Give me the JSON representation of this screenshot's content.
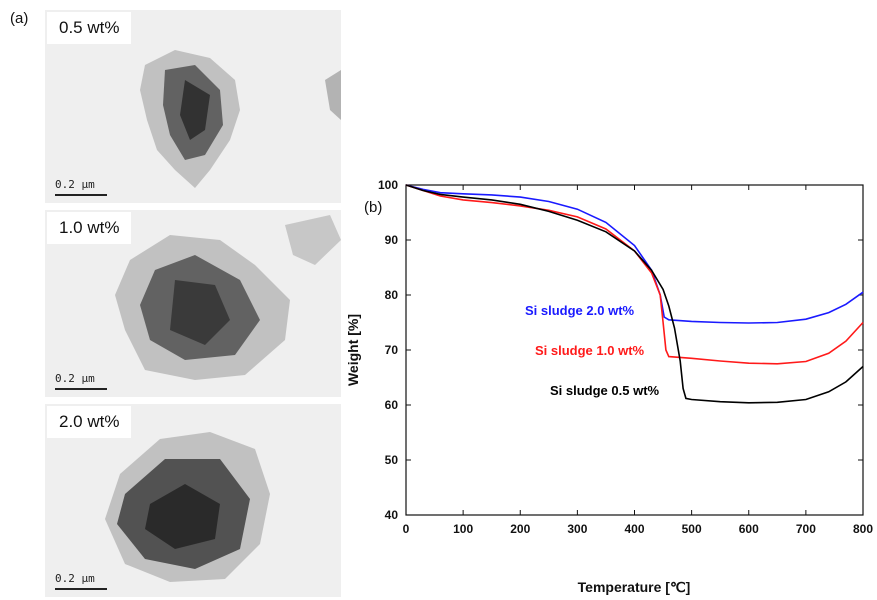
{
  "panel_a_label": "(a)",
  "panel_b_label": "(b)",
  "tem_panels": [
    {
      "label": "0.5 wt%",
      "scale": "0.2 μm"
    },
    {
      "label": "1.0 wt%",
      "scale": "0.2 μm"
    },
    {
      "label": "2.0 wt%",
      "scale": "0.2 μm"
    }
  ],
  "chart_data": {
    "type": "line",
    "xlabel": "Temperature [℃]",
    "ylabel": "Weight [%]",
    "xlim": [
      0,
      800
    ],
    "ylim": [
      40,
      100
    ],
    "xticks": [
      0,
      100,
      200,
      300,
      400,
      500,
      600,
      700,
      800
    ],
    "yticks": [
      40,
      50,
      60,
      70,
      80,
      90,
      100
    ],
    "grid": false,
    "series": [
      {
        "name": "Si sludge 2.0 wt%",
        "color": "#1a1aff",
        "x": [
          0,
          30,
          60,
          100,
          150,
          200,
          250,
          300,
          350,
          400,
          430,
          445,
          452,
          460,
          500,
          550,
          600,
          650,
          700,
          740,
          770,
          800
        ],
        "y": [
          100,
          99.2,
          98.6,
          98.4,
          98.2,
          97.8,
          97.0,
          95.6,
          93.2,
          89.0,
          84.5,
          80.0,
          76.0,
          75.5,
          75.2,
          75.0,
          74.9,
          75.0,
          75.6,
          76.8,
          78.3,
          80.5
        ]
      },
      {
        "name": "Si sludge 1.0 wt%",
        "color": "#ff1a1a",
        "x": [
          0,
          30,
          60,
          100,
          150,
          200,
          250,
          300,
          350,
          400,
          430,
          445,
          450,
          455,
          460,
          500,
          550,
          600,
          650,
          700,
          740,
          770,
          800
        ],
        "y": [
          100,
          99.0,
          98.0,
          97.3,
          96.8,
          96.2,
          95.4,
          94.2,
          92.0,
          88.0,
          84.0,
          80.0,
          75.0,
          70.0,
          68.8,
          68.5,
          68.0,
          67.6,
          67.5,
          67.9,
          69.4,
          71.6,
          75.0
        ]
      },
      {
        "name": "Si sludge 0.5 wt%",
        "color": "#000000",
        "x": [
          0,
          30,
          60,
          100,
          150,
          200,
          250,
          300,
          350,
          400,
          430,
          450,
          460,
          470,
          480,
          485,
          490,
          500,
          550,
          600,
          650,
          700,
          740,
          770,
          800
        ],
        "y": [
          100,
          99.0,
          98.3,
          97.8,
          97.3,
          96.5,
          95.2,
          93.6,
          91.5,
          88.0,
          84.5,
          81.0,
          78.0,
          74.0,
          68.0,
          63.0,
          61.2,
          61.0,
          60.6,
          60.4,
          60.5,
          61.0,
          62.4,
          64.2,
          67.0
        ]
      }
    ]
  }
}
